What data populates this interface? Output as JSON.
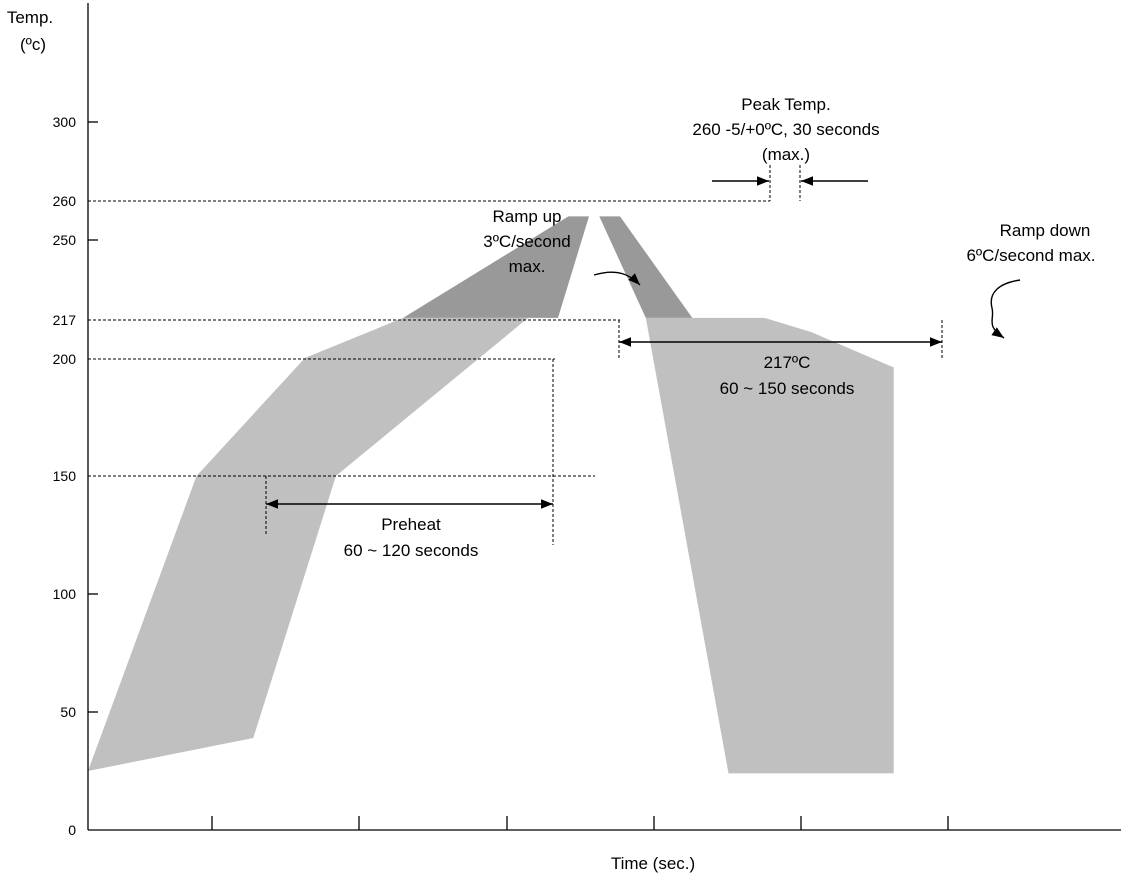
{
  "chart_data": {
    "type": "area",
    "title": "",
    "ylabel": "Temp.",
    "ylabel_unit": "(ºc)",
    "xlabel": "Time (sec.)",
    "ylim": [
      0,
      370
    ],
    "y_ticks": [
      "0",
      "50",
      "100",
      "150",
      "200",
      "217",
      "250",
      "260",
      "300"
    ],
    "x_tick_count": 6,
    "grid": false,
    "reference_levels": [
      150,
      200,
      217,
      260
    ],
    "zones": [
      {
        "name": "preheat-zone",
        "color": "#c0c0c0",
        "points": [
          [
            0,
            25
          ],
          [
            10.5,
            150
          ],
          [
            21,
            200
          ],
          [
            30.5,
            217
          ],
          [
            42.6,
            217
          ],
          [
            24,
            150
          ],
          [
            16,
            39
          ]
        ]
      },
      {
        "name": "ramp-down-zone",
        "color": "#c0c0c0",
        "points": [
          [
            54,
            217
          ],
          [
            65.5,
            217
          ],
          [
            67,
            215
          ],
          [
            70,
            211
          ],
          [
            78,
            196
          ],
          [
            78,
            177
          ],
          [
            78,
            24
          ],
          [
            62,
            24
          ]
        ]
      },
      {
        "name": "ramp-up-zone",
        "color": "#999999",
        "points": [
          [
            30.5,
            217
          ],
          [
            46.5,
            260
          ],
          [
            48.5,
            260
          ],
          [
            45.5,
            217
          ]
        ]
      },
      {
        "name": "peak-ramp-down-zone",
        "color": "#999999",
        "points": [
          [
            49.5,
            260
          ],
          [
            51.5,
            260
          ],
          [
            58.5,
            217
          ],
          [
            54,
            217
          ]
        ]
      }
    ],
    "annotations": {
      "preheat": {
        "label": "Preheat",
        "detail": "60 ~ 120 seconds"
      },
      "tal": {
        "label": "217ºC",
        "detail": "60 ~ 150 seconds"
      },
      "peak": {
        "lines": [
          "Peak Temp.",
          "260 -5/+0ºC, 30 seconds",
          "(max.)"
        ]
      },
      "ramp_up": {
        "lines": [
          "Ramp up",
          "3ºC/second",
          "max."
        ]
      },
      "ramp_down": {
        "lines": [
          "Ramp down",
          "6ºC/second max."
        ]
      }
    }
  }
}
